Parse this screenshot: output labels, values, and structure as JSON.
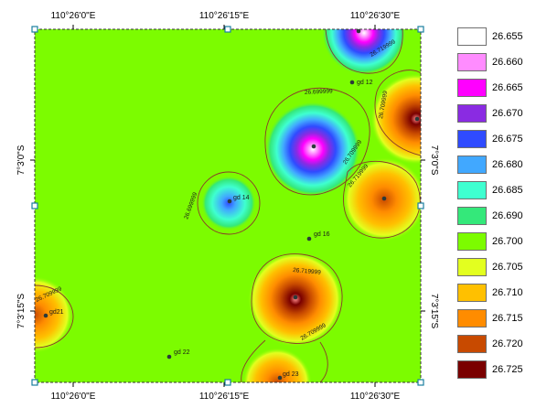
{
  "map": {
    "background_color": "#7cfc00",
    "lon_ticks": [
      "110°26'0\"E",
      "110°26'15\"E",
      "110°26'30\"E"
    ],
    "lat_ticks": [
      "7°3'0\"S",
      "7°3'15\"S"
    ],
    "points": [
      {
        "label": "gd 12"
      },
      {
        "label": "gd 14"
      },
      {
        "label": "gd 16"
      },
      {
        "label": "gd 22"
      },
      {
        "label": "gd 23"
      },
      {
        "label": "gd21"
      }
    ],
    "contour_labels": [
      "26.699999",
      "26.699999",
      "26.709999",
      "26.719999",
      "26.709999",
      "26.719999",
      "26.709999",
      "26.709999",
      "26.719999"
    ]
  },
  "legend": {
    "items": [
      {
        "value": "26.655",
        "color": "#ffffff"
      },
      {
        "value": "26.660",
        "color": "#ff8cff"
      },
      {
        "value": "26.665",
        "color": "#ff00ff"
      },
      {
        "value": "26.670",
        "color": "#8a2be2"
      },
      {
        "value": "26.675",
        "color": "#2f4bff"
      },
      {
        "value": "26.680",
        "color": "#41a8ff"
      },
      {
        "value": "26.685",
        "color": "#3fffd0"
      },
      {
        "value": "26.690",
        "color": "#34e87a"
      },
      {
        "value": "26.700",
        "color": "#7cfc00"
      },
      {
        "value": "26.705",
        "color": "#e3ff1f"
      },
      {
        "value": "26.710",
        "color": "#ffc000"
      },
      {
        "value": "26.715",
        "color": "#ff8c00"
      },
      {
        "value": "26.720",
        "color": "#c84a00"
      },
      {
        "value": "26.725",
        "color": "#7a0000"
      }
    ]
  }
}
